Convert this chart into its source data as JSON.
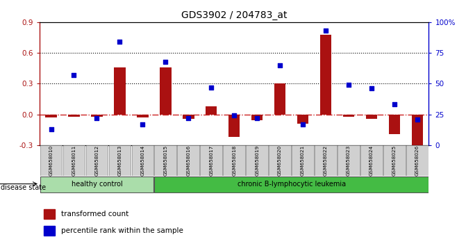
{
  "title": "GDS3902 / 204783_at",
  "samples": [
    "GSM658010",
    "GSM658011",
    "GSM658012",
    "GSM658013",
    "GSM658014",
    "GSM658015",
    "GSM658016",
    "GSM658017",
    "GSM658018",
    "GSM658019",
    "GSM658020",
    "GSM658021",
    "GSM658022",
    "GSM658023",
    "GSM658024",
    "GSM658025",
    "GSM658026"
  ],
  "transformed_count": [
    -0.03,
    -0.02,
    -0.02,
    0.46,
    -0.03,
    0.46,
    -0.04,
    0.08,
    -0.22,
    -0.06,
    0.3,
    -0.09,
    0.78,
    -0.02,
    -0.04,
    -0.19,
    -0.3
  ],
  "percentile_rank": [
    13,
    57,
    22,
    84,
    17,
    68,
    22,
    47,
    24,
    22,
    65,
    17,
    93,
    49,
    46,
    33,
    21
  ],
  "healthy_count": 5,
  "group_labels": [
    "healthy control",
    "chronic B-lymphocytic leukemia"
  ],
  "healthy_color": "#aaddaa",
  "leukemia_color": "#44bb44",
  "bar_color": "#aa1111",
  "dot_color": "#0000cc",
  "zero_line_color": "#cc2222",
  "left_ylim": [
    -0.3,
    0.9
  ],
  "left_yticks": [
    -0.3,
    0.0,
    0.3,
    0.6,
    0.9
  ],
  "right_ylim": [
    0,
    100
  ],
  "right_yticks": [
    0,
    25,
    50,
    75,
    100
  ],
  "right_yticklabels": [
    "0",
    "25",
    "50",
    "75",
    "100%"
  ],
  "hlines": [
    0.3,
    0.6
  ],
  "disease_state_label": "disease state",
  "legend_bar_label": "transformed count",
  "legend_dot_label": "percentile rank within the sample"
}
